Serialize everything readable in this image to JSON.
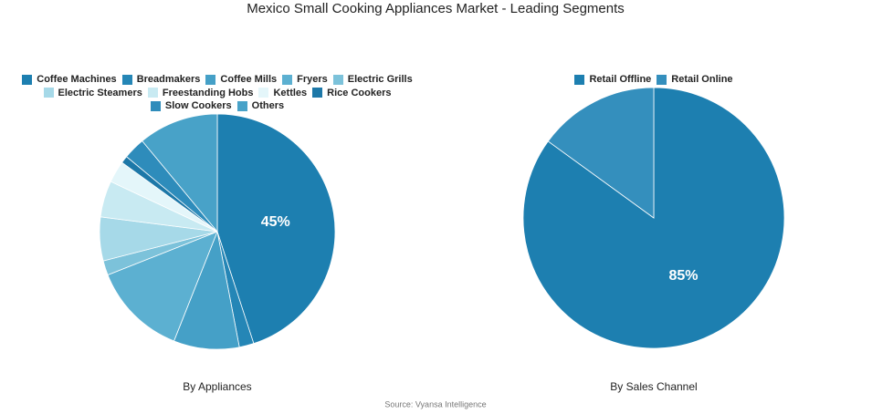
{
  "title": "Mexico Small Cooking Appliances Market - Leading Segments",
  "source": "Source: Vyansa Intelligence",
  "chart_data": [
    {
      "type": "pie",
      "title": "By Appliances",
      "categories": [
        "Coffee Machines",
        "Breadmakers",
        "Coffee Mills",
        "Fryers",
        "Electric Grills",
        "Electric Steamers",
        "Freestanding Hobs",
        "Kettles",
        "Rice Cookers",
        "Slow Cookers",
        "Others"
      ],
      "values": [
        45,
        2,
        9,
        13,
        2,
        6,
        5,
        3,
        1,
        3,
        11
      ],
      "value_labels": [
        "45%",
        null,
        null,
        null,
        null,
        null,
        null,
        null,
        null,
        null,
        null
      ],
      "colors": [
        "#1d7fb0",
        "#2586b6",
        "#45a0c7",
        "#5cb0d1",
        "#7cc2da",
        "#a6d9e8",
        "#c8eaf2",
        "#e4f6fa",
        "#1d78a8",
        "#2e8cbb",
        "#48a2c8"
      ]
    },
    {
      "type": "pie",
      "title": "By Sales Channel",
      "categories": [
        "Retail Offline",
        "Retail Online"
      ],
      "values": [
        85,
        15
      ],
      "value_labels": [
        "85%",
        null
      ],
      "colors": [
        "#1d7fb0",
        "#348fbd"
      ]
    }
  ]
}
